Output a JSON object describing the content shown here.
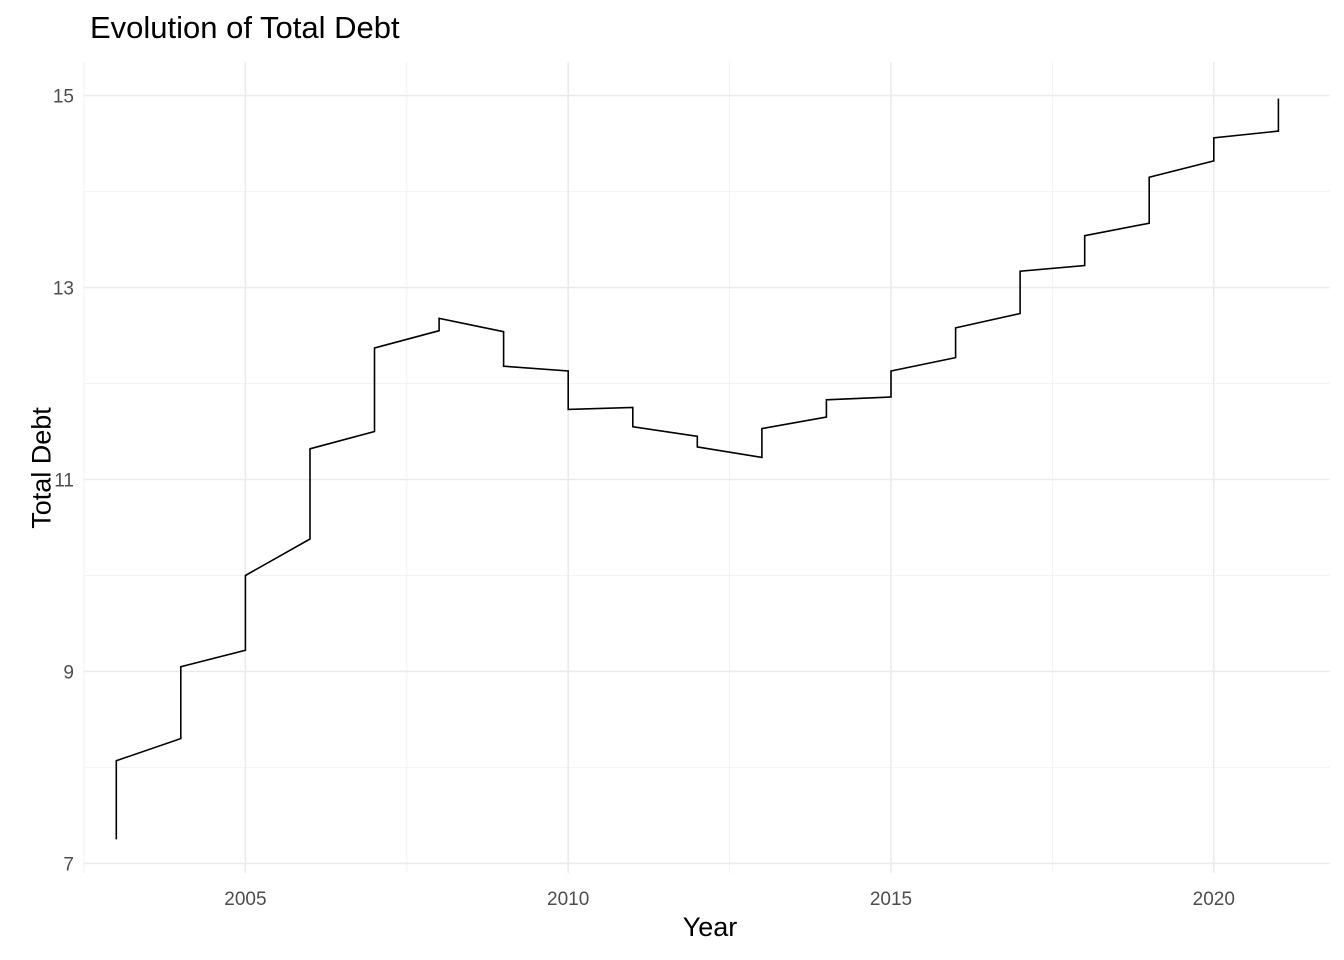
{
  "chart_data": {
    "type": "line",
    "title": "Evolution of Total Debt",
    "xlabel": "Year",
    "ylabel": "Total Debt",
    "xlim": [
      2002.5,
      2021.8
    ],
    "ylim": [
      6.9,
      15.35
    ],
    "x_ticks": [
      2005,
      2010,
      2015,
      2020
    ],
    "y_ticks": [
      7,
      9,
      11,
      13,
      15
    ],
    "x_ticks_labels": [
      "2005",
      "2010",
      "2015",
      "2020"
    ],
    "y_ticks_labels": [
      "7",
      "9",
      "11",
      "13",
      "15"
    ],
    "grid": true,
    "line_color": "#000000",
    "series": [
      {
        "x": [
          2003,
          2003,
          2004,
          2004,
          2005,
          2005,
          2006,
          2006,
          2007,
          2007,
          2008,
          2008,
          2009,
          2009,
          2010,
          2010,
          2011,
          2011,
          2012,
          2012,
          2013,
          2013,
          2014,
          2014,
          2015,
          2015,
          2016,
          2016,
          2017,
          2017,
          2018,
          2018,
          2019,
          2019,
          2020,
          2020,
          2021,
          2021
        ],
        "y": [
          7.25,
          8.07,
          8.3,
          9.05,
          9.22,
          10.0,
          10.38,
          11.32,
          11.5,
          12.37,
          12.55,
          12.68,
          12.54,
          12.18,
          12.13,
          11.73,
          11.75,
          11.55,
          11.45,
          11.34,
          11.23,
          11.53,
          11.65,
          11.83,
          11.86,
          12.13,
          12.27,
          12.58,
          12.73,
          13.17,
          13.23,
          13.54,
          13.67,
          14.15,
          14.32,
          14.56,
          14.63,
          14.97
        ]
      }
    ]
  }
}
